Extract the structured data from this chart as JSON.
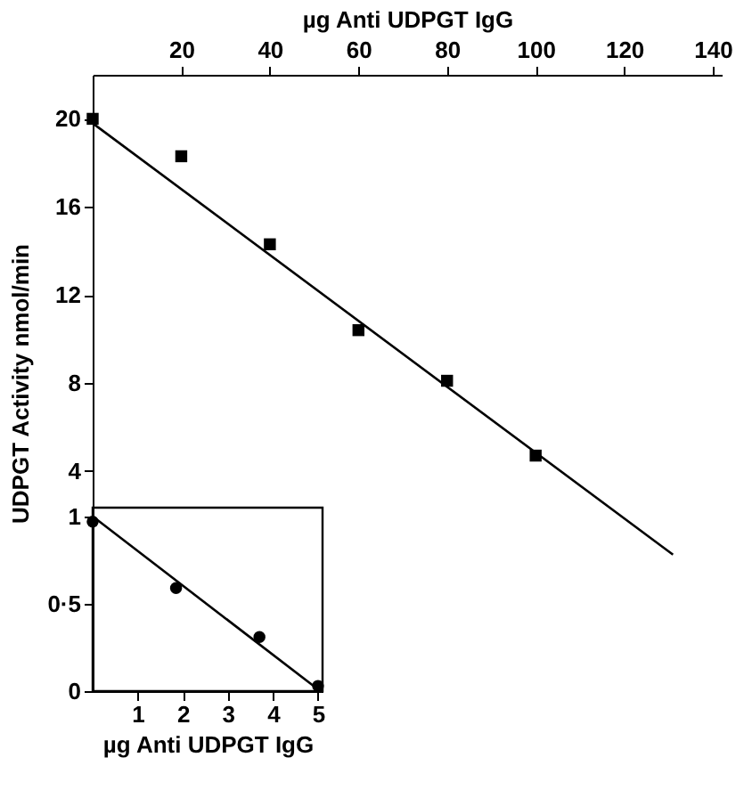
{
  "chart_data": [
    {
      "type": "scatter",
      "xlabel": "µg Anti UDPGT IgG",
      "ylabel": "UDPGT Activity  nmol/min",
      "xlim": [
        0,
        142
      ],
      "ylim": [
        -6,
        22
      ],
      "xticks": [
        20,
        40,
        60,
        80,
        100,
        120,
        140
      ],
      "yticks": [
        4,
        8,
        12,
        16,
        20
      ],
      "series": [
        {
          "color": "#000000",
          "marker": "square",
          "x": [
            0,
            20,
            40,
            60,
            80,
            100
          ],
          "values": [
            20,
            18.3,
            14.3,
            10.4,
            8.1,
            4.7
          ]
        },
        {
          "type": "line",
          "color": "#000000",
          "marker": "none",
          "line_style": "solid",
          "x": [
            0,
            131
          ],
          "values": [
            19.8,
            0.2
          ]
        }
      ]
    },
    {
      "type": "scatter",
      "xlabel": "µg Anti UDPGT IgG",
      "xlim": [
        0,
        5.1
      ],
      "ylim": [
        0,
        1.05
      ],
      "xticks": [
        1,
        2,
        3,
        4,
        5
      ],
      "yticks": [
        0,
        {
          "value": 0.5,
          "label": "0·5"
        },
        1
      ],
      "series": [
        {
          "color": "#000000",
          "marker": "circle",
          "x": [
            0,
            1.85,
            3.7,
            5
          ],
          "values": [
            0.97,
            0.59,
            0.31,
            0.03
          ]
        },
        {
          "type": "line",
          "color": "#000000",
          "marker": "none",
          "line_style": "solid",
          "x": [
            0,
            5
          ],
          "values": [
            1.0,
            0.01
          ]
        }
      ]
    }
  ]
}
